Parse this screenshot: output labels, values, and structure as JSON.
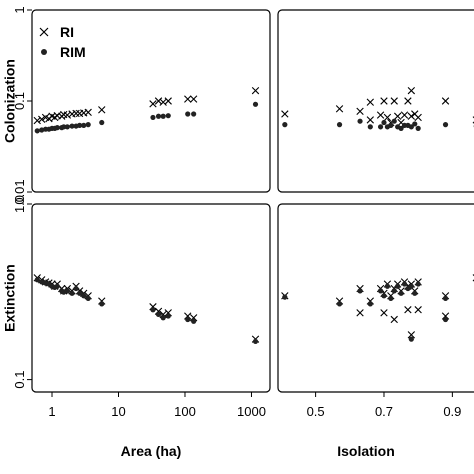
{
  "chart_data": [
    {
      "panel": "top-left",
      "type": "scatter",
      "xlabel": "",
      "ylabel": "Colonization",
      "xscale": "log",
      "yscale": "log",
      "xlim": [
        0.5,
        1900
      ],
      "ylim": [
        0.01,
        1
      ],
      "xticks": [],
      "yticks": [
        {
          "v": 0.01,
          "label": "0.01"
        },
        {
          "v": 0.1,
          "label": "0.1"
        },
        {
          "v": 1,
          "label": "1"
        }
      ],
      "legend": {
        "position": "top-left",
        "entries": [
          {
            "label": "RI",
            "marker": "x"
          },
          {
            "label": "RIM",
            "marker": "dot"
          }
        ]
      },
      "series": [
        {
          "name": "RI",
          "marker": "x",
          "points": [
            [
              0.6,
              0.061
            ],
            [
              0.7,
              0.063
            ],
            [
              0.8,
              0.066
            ],
            [
              0.9,
              0.064
            ],
            [
              1.0,
              0.068
            ],
            [
              1.1,
              0.066
            ],
            [
              1.2,
              0.069
            ],
            [
              1.4,
              0.068
            ],
            [
              1.5,
              0.071
            ],
            [
              1.7,
              0.07
            ],
            [
              2.0,
              0.072
            ],
            [
              2.3,
              0.073
            ],
            [
              2.6,
              0.073
            ],
            [
              3.0,
              0.074
            ],
            [
              3.5,
              0.075
            ],
            [
              5.6,
              0.08
            ],
            [
              33,
              0.093
            ],
            [
              40,
              0.1
            ],
            [
              47,
              0.097
            ],
            [
              56,
              0.1
            ],
            [
              110,
              0.105
            ],
            [
              135,
              0.105
            ],
            [
              1150,
              0.13
            ]
          ]
        },
        {
          "name": "RIM",
          "marker": "dot",
          "points": [
            [
              0.6,
              0.047
            ],
            [
              0.7,
              0.048
            ],
            [
              0.8,
              0.049
            ],
            [
              0.9,
              0.049
            ],
            [
              1.0,
              0.05
            ],
            [
              1.1,
              0.05
            ],
            [
              1.2,
              0.051
            ],
            [
              1.4,
              0.051
            ],
            [
              1.5,
              0.052
            ],
            [
              1.7,
              0.052
            ],
            [
              2.0,
              0.053
            ],
            [
              2.3,
              0.053
            ],
            [
              2.6,
              0.054
            ],
            [
              3.0,
              0.054
            ],
            [
              3.5,
              0.055
            ],
            [
              5.6,
              0.058
            ],
            [
              33,
              0.066
            ],
            [
              40,
              0.068
            ],
            [
              47,
              0.068
            ],
            [
              56,
              0.069
            ],
            [
              110,
              0.072
            ],
            [
              135,
              0.072
            ],
            [
              1150,
              0.092
            ]
          ]
        }
      ]
    },
    {
      "panel": "top-right",
      "type": "scatter",
      "xlabel": "",
      "ylabel": "",
      "yscale": "log",
      "xlim": [
        0.39,
        0.975
      ],
      "ylim": [
        0.01,
        1
      ],
      "xticks": [],
      "yticks": [],
      "series": [
        {
          "name": "RI",
          "marker": "x",
          "points": [
            [
              0.41,
              0.072
            ],
            [
              0.57,
              0.082
            ],
            [
              0.63,
              0.077
            ],
            [
              0.66,
              0.097
            ],
            [
              0.66,
              0.062
            ],
            [
              0.69,
              0.07
            ],
            [
              0.7,
              0.1
            ],
            [
              0.71,
              0.066
            ],
            [
              0.72,
              0.058
            ],
            [
              0.73,
              0.1
            ],
            [
              0.74,
              0.068
            ],
            [
              0.75,
              0.058
            ],
            [
              0.76,
              0.07
            ],
            [
              0.77,
              0.1
            ],
            [
              0.78,
              0.13
            ],
            [
              0.78,
              0.068
            ],
            [
              0.79,
              0.072
            ],
            [
              0.8,
              0.066
            ],
            [
              0.88,
              0.1
            ],
            [
              0.97,
              0.062
            ]
          ]
        },
        {
          "name": "RIM",
          "marker": "dot",
          "points": [
            [
              0.41,
              0.055
            ],
            [
              0.57,
              0.055
            ],
            [
              0.63,
              0.06
            ],
            [
              0.66,
              0.052
            ],
            [
              0.69,
              0.052
            ],
            [
              0.7,
              0.058
            ],
            [
              0.71,
              0.052
            ],
            [
              0.72,
              0.054
            ],
            [
              0.73,
              0.06
            ],
            [
              0.74,
              0.052
            ],
            [
              0.75,
              0.05
            ],
            [
              0.76,
              0.054
            ],
            [
              0.77,
              0.054
            ],
            [
              0.78,
              0.052
            ],
            [
              0.79,
              0.056
            ],
            [
              0.8,
              0.05
            ],
            [
              0.88,
              0.055
            ],
            [
              0.97,
              0.053
            ]
          ]
        }
      ]
    },
    {
      "panel": "bottom-left",
      "type": "scatter",
      "xlabel": "Area (ha)",
      "ylabel": "Extinction",
      "xscale": "log",
      "yscale": "log",
      "xlim": [
        0.5,
        1900
      ],
      "ylim": [
        0.085,
        1
      ],
      "xticks": [
        {
          "v": 1,
          "label": "1"
        },
        {
          "v": 10,
          "label": "10"
        },
        {
          "v": 100,
          "label": "100"
        },
        {
          "v": 1000,
          "label": "1000"
        }
      ],
      "yticks": [
        {
          "v": 0.1,
          "label": "0.1"
        },
        {
          "v": 1,
          "label": "1.0"
        }
      ],
      "series": [
        {
          "name": "RI",
          "marker": "x",
          "points": [
            [
              0.6,
              0.38
            ],
            [
              0.7,
              0.37
            ],
            [
              0.8,
              0.36
            ],
            [
              0.9,
              0.355
            ],
            [
              1.0,
              0.35
            ],
            [
              1.1,
              0.34
            ],
            [
              1.2,
              0.35
            ],
            [
              1.4,
              0.33
            ],
            [
              1.5,
              0.32
            ],
            [
              1.7,
              0.33
            ],
            [
              2.0,
              0.32
            ],
            [
              2.3,
              0.34
            ],
            [
              2.6,
              0.32
            ],
            [
              3.0,
              0.31
            ],
            [
              3.5,
              0.3
            ],
            [
              5.6,
              0.28
            ],
            [
              33,
              0.26
            ],
            [
              40,
              0.245
            ],
            [
              47,
              0.235
            ],
            [
              56,
              0.24
            ],
            [
              110,
              0.23
            ],
            [
              135,
              0.225
            ],
            [
              1150,
              0.17
            ]
          ]
        },
        {
          "name": "RIM",
          "marker": "dot",
          "points": [
            [
              0.6,
              0.37
            ],
            [
              0.7,
              0.36
            ],
            [
              0.8,
              0.355
            ],
            [
              0.9,
              0.35
            ],
            [
              1.0,
              0.34
            ],
            [
              1.1,
              0.335
            ],
            [
              1.2,
              0.34
            ],
            [
              1.4,
              0.32
            ],
            [
              1.5,
              0.315
            ],
            [
              1.7,
              0.32
            ],
            [
              2.0,
              0.31
            ],
            [
              2.3,
              0.33
            ],
            [
              2.6,
              0.31
            ],
            [
              3.0,
              0.3
            ],
            [
              3.5,
              0.29
            ],
            [
              5.6,
              0.27
            ],
            [
              33,
              0.25
            ],
            [
              40,
              0.235
            ],
            [
              47,
              0.225
            ],
            [
              56,
              0.23
            ],
            [
              110,
              0.22
            ],
            [
              135,
              0.215
            ],
            [
              1150,
              0.165
            ]
          ]
        }
      ]
    },
    {
      "panel": "bottom-right",
      "type": "scatter",
      "xlabel": "Isolation",
      "ylabel": "",
      "yscale": "log",
      "xlim": [
        0.39,
        0.975
      ],
      "ylim": [
        0.085,
        1
      ],
      "xticks": [
        {
          "v": 0.5,
          "label": "0.5"
        },
        {
          "v": 0.7,
          "label": "0.7"
        },
        {
          "v": 0.9,
          "label": "0.9"
        }
      ],
      "yticks": [],
      "series": [
        {
          "name": "RI",
          "marker": "x",
          "points": [
            [
              0.41,
              0.3
            ],
            [
              0.57,
              0.28
            ],
            [
              0.63,
              0.33
            ],
            [
              0.63,
              0.24
            ],
            [
              0.66,
              0.28
            ],
            [
              0.69,
              0.33
            ],
            [
              0.7,
              0.31
            ],
            [
              0.7,
              0.24
            ],
            [
              0.71,
              0.35
            ],
            [
              0.72,
              0.3
            ],
            [
              0.73,
              0.33
            ],
            [
              0.73,
              0.22
            ],
            [
              0.74,
              0.35
            ],
            [
              0.75,
              0.32
            ],
            [
              0.76,
              0.36
            ],
            [
              0.77,
              0.25
            ],
            [
              0.77,
              0.34
            ],
            [
              0.78,
              0.18
            ],
            [
              0.78,
              0.35
            ],
            [
              0.79,
              0.32
            ],
            [
              0.8,
              0.36
            ],
            [
              0.8,
              0.25
            ],
            [
              0.88,
              0.3
            ],
            [
              0.88,
              0.23
            ],
            [
              0.97,
              0.38
            ]
          ]
        },
        {
          "name": "RIM",
          "marker": "dot",
          "points": [
            [
              0.41,
              0.295
            ],
            [
              0.57,
              0.27
            ],
            [
              0.63,
              0.32
            ],
            [
              0.66,
              0.27
            ],
            [
              0.69,
              0.32
            ],
            [
              0.7,
              0.3
            ],
            [
              0.71,
              0.34
            ],
            [
              0.72,
              0.29
            ],
            [
              0.73,
              0.32
            ],
            [
              0.74,
              0.34
            ],
            [
              0.75,
              0.31
            ],
            [
              0.76,
              0.35
            ],
            [
              0.77,
              0.33
            ],
            [
              0.78,
              0.17
            ],
            [
              0.78,
              0.34
            ],
            [
              0.79,
              0.31
            ],
            [
              0.8,
              0.35
            ],
            [
              0.88,
              0.29
            ],
            [
              0.88,
              0.22
            ]
          ]
        }
      ]
    }
  ]
}
